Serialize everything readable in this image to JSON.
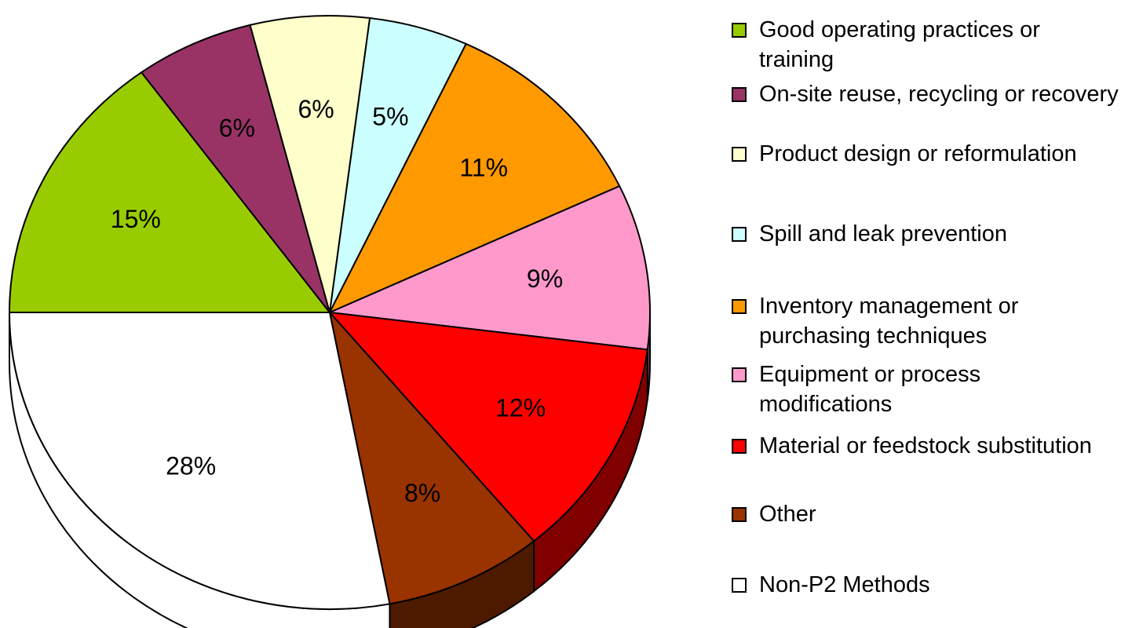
{
  "chart_data": {
    "type": "pie",
    "categories": [
      "Good operating practices or training",
      "On-site reuse, recycling or recovery",
      "Product design or reformulation",
      "Spill and leak prevention",
      "Inventory management or purchasing techniques",
      "Equipment or process modifications",
      "Material or feedstock substitution",
      "Other",
      "Non-P2 Methods"
    ],
    "values": [
      15,
      6,
      6,
      5,
      11,
      9,
      12,
      8,
      28
    ],
    "value_labels": [
      "15%",
      "6%",
      "6%",
      "5%",
      "11%",
      "9%",
      "12%",
      "8%",
      "28%"
    ],
    "colors": [
      "#99cc00",
      "#993366",
      "#ffffcc",
      "#ccffff",
      "#ff9900",
      "#ff99cc",
      "#ff0000",
      "#993300",
      "#ffffff"
    ],
    "legend": "right"
  }
}
